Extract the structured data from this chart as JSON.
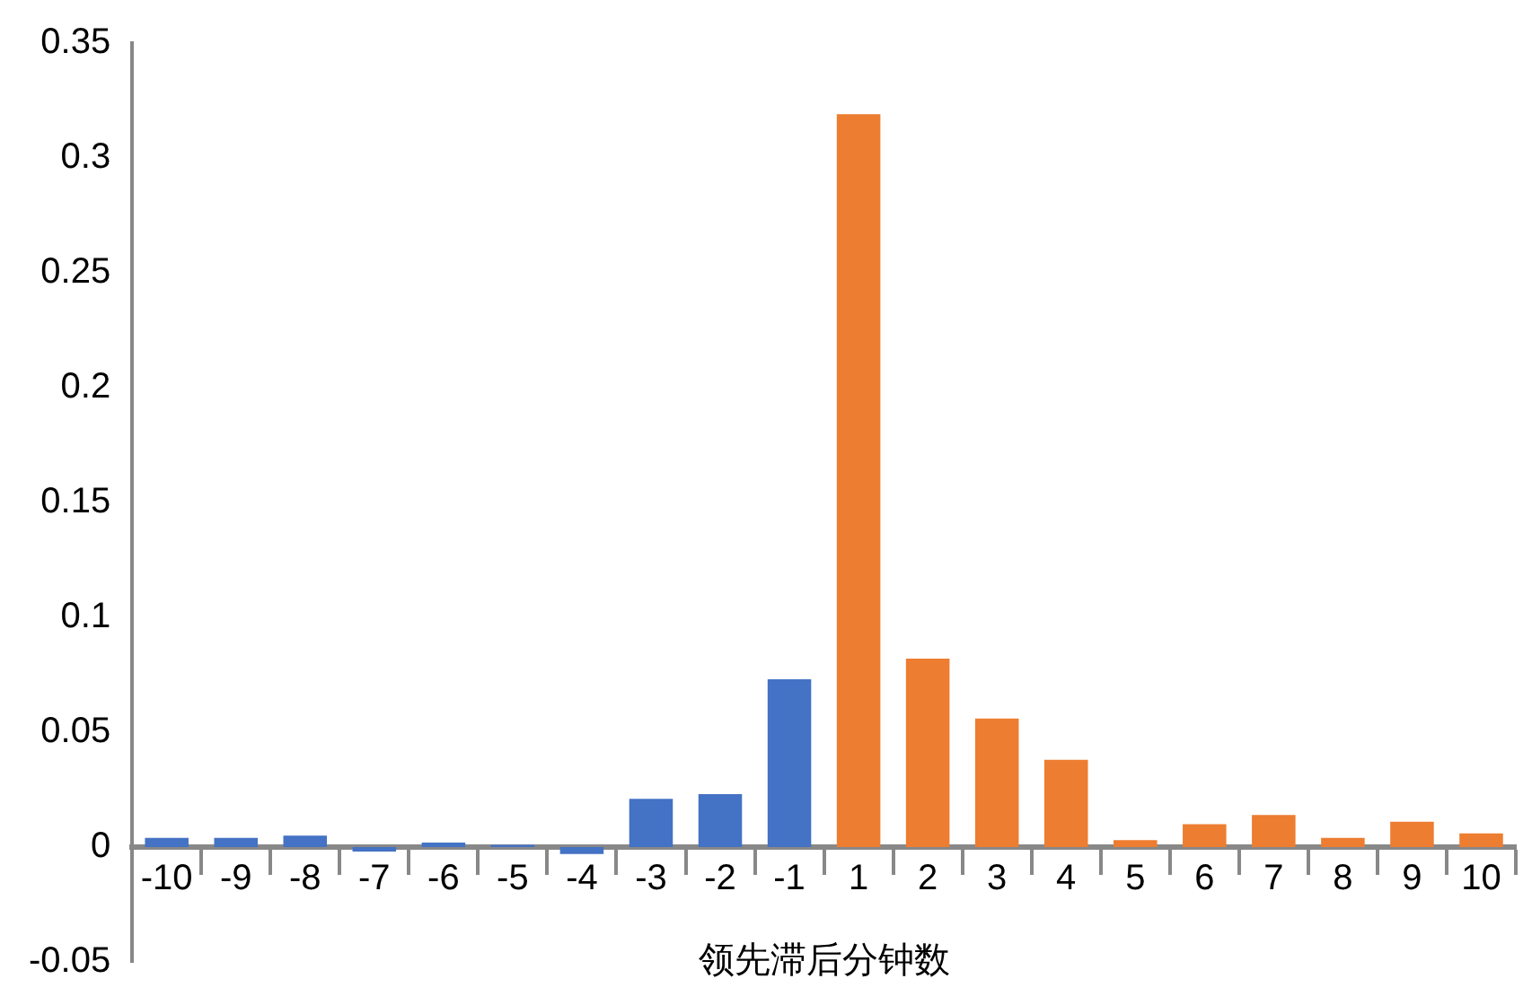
{
  "chart_data": {
    "type": "bar",
    "xlabel": "领先滞后分钟数",
    "categories": [
      "-10",
      "-9",
      "-8",
      "-7",
      "-6",
      "-5",
      "-4",
      "-3",
      "-2",
      "-1",
      "1",
      "2",
      "3",
      "4",
      "5",
      "6",
      "7",
      "8",
      "9",
      "10"
    ],
    "values": [
      0.004,
      0.004,
      0.005,
      -0.002,
      0.002,
      0.001,
      -0.003,
      0.021,
      0.023,
      0.073,
      0.319,
      0.082,
      0.056,
      0.038,
      0.003,
      0.01,
      0.014,
      0.004,
      0.011,
      0.006
    ],
    "colors": [
      "#4472c4",
      "#4472c4",
      "#4472c4",
      "#4472c4",
      "#4472c4",
      "#4472c4",
      "#4472c4",
      "#4472c4",
      "#4472c4",
      "#4472c4",
      "#ed7d31",
      "#ed7d31",
      "#ed7d31",
      "#ed7d31",
      "#ed7d31",
      "#ed7d31",
      "#ed7d31",
      "#ed7d31",
      "#ed7d31",
      "#ed7d31"
    ],
    "ylim": [
      -0.05,
      0.35
    ],
    "yticks": [
      -0.05,
      0,
      0.05,
      0.1,
      0.15,
      0.2,
      0.25,
      0.3,
      0.35
    ],
    "grid": false,
    "legend": false
  }
}
